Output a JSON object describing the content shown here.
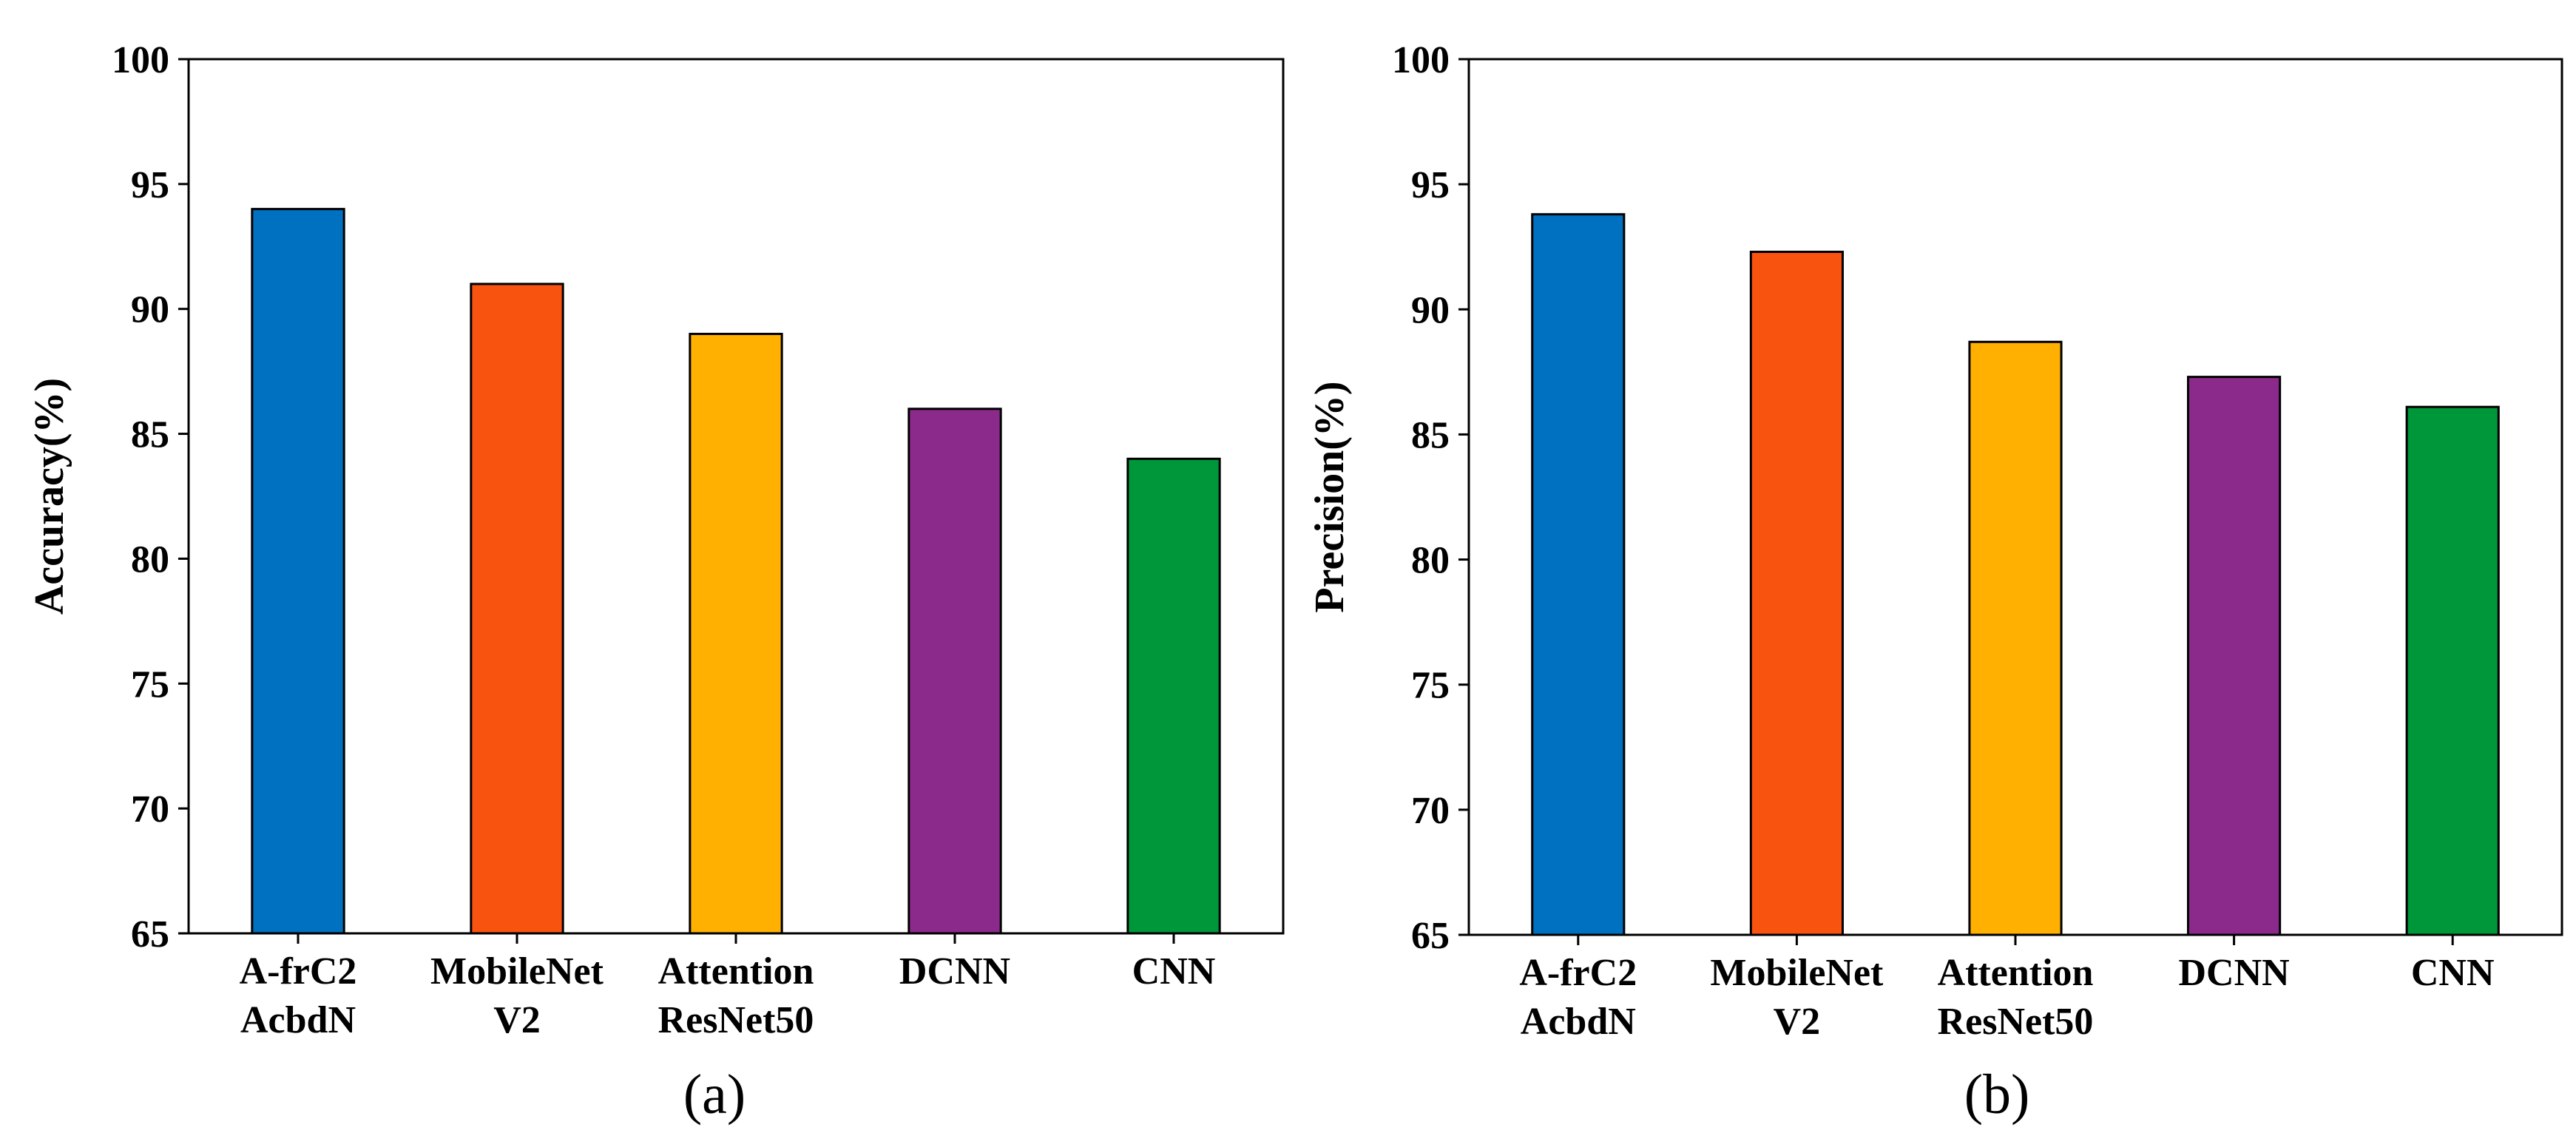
{
  "chart_data": [
    {
      "type": "bar",
      "panel_label": "(a)",
      "title": "",
      "xlabel": "",
      "ylabel": "Accuracy(%)",
      "ylim": [
        65,
        100
      ],
      "yticks": [
        65,
        70,
        75,
        80,
        85,
        90,
        95,
        100
      ],
      "grid": false,
      "legend": "none",
      "categories": [
        [
          "A-frC2",
          "AcbdN"
        ],
        [
          "MobileNet",
          "V2"
        ],
        [
          "Attention",
          "ResNet50"
        ],
        [
          "DCNN"
        ],
        [
          "CNN"
        ]
      ],
      "values": [
        94,
        91,
        89,
        86,
        84
      ],
      "colors": [
        "#0070C0",
        "#F95310",
        "#FFB000",
        "#8B2A8B",
        "#00963A"
      ]
    },
    {
      "type": "bar",
      "panel_label": "(b)",
      "title": "",
      "xlabel": "",
      "ylabel": "Precision(%)",
      "ylim": [
        65,
        100
      ],
      "yticks": [
        65,
        70,
        75,
        80,
        85,
        90,
        95,
        100
      ],
      "grid": false,
      "legend": "none",
      "categories": [
        [
          "A-frC2",
          "AcbdN"
        ],
        [
          "MobileNet",
          "V2"
        ],
        [
          "Attention",
          "ResNet50"
        ],
        [
          "DCNN"
        ],
        [
          "CNN"
        ]
      ],
      "values": [
        93.8,
        92.3,
        88.7,
        87.3,
        86.1
      ],
      "colors": [
        "#0070C0",
        "#F95310",
        "#FFB000",
        "#8B2A8B",
        "#00963A"
      ]
    }
  ]
}
